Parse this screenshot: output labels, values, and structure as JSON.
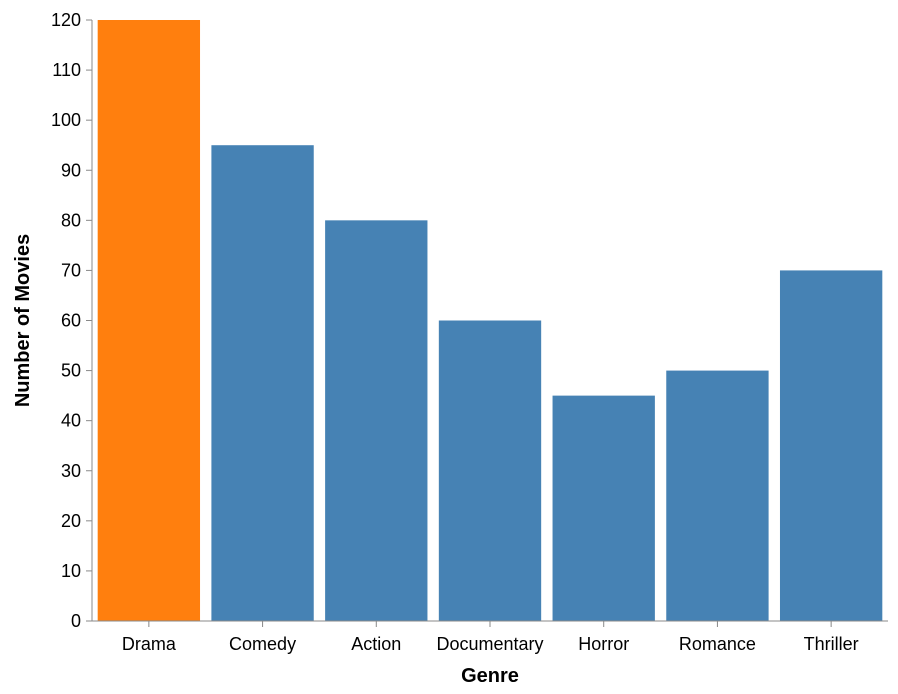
{
  "chart_data": {
    "type": "bar",
    "title": "",
    "xlabel": "Genre",
    "ylabel": "Number of Movies",
    "categories": [
      "Drama",
      "Comedy",
      "Action",
      "Documentary",
      "Horror",
      "Romance",
      "Thriller"
    ],
    "values": [
      120,
      95,
      80,
      60,
      45,
      50,
      70
    ],
    "highlight_category": "Drama",
    "ylim": [
      0,
      120
    ],
    "yticks": [
      0,
      10,
      20,
      30,
      40,
      50,
      60,
      70,
      80,
      90,
      100,
      110,
      120
    ],
    "grid": false,
    "legend": "none",
    "colors": {
      "bar": "#4682b4",
      "highlight": "#ff7f0e",
      "axis": "#888888"
    }
  }
}
